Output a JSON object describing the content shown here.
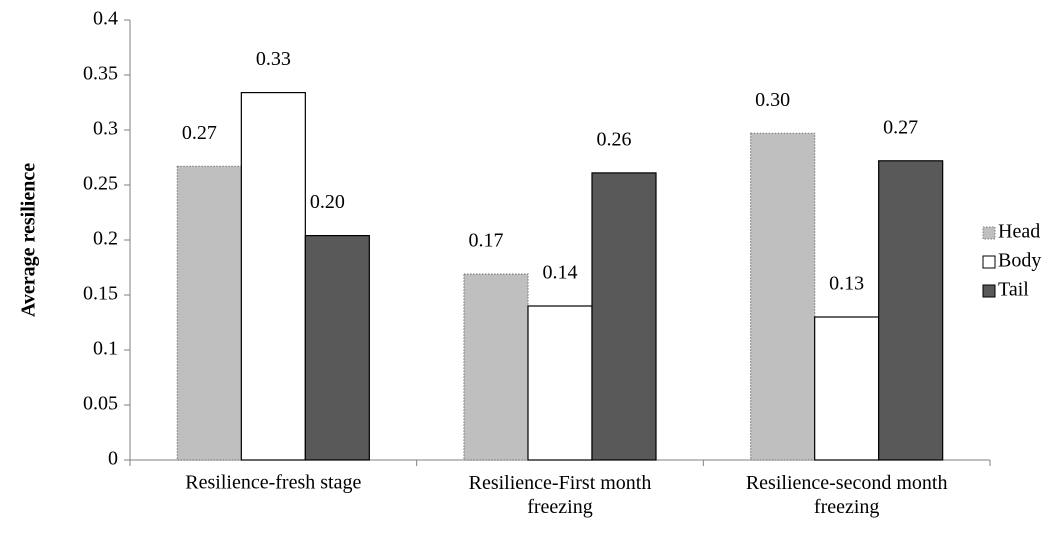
{
  "chart_data": {
    "type": "bar",
    "y_label": "Average resilience",
    "categories": [
      "Resilience-fresh stage",
      "Resilience-First month freezing",
      "Resilience-second month freezing"
    ],
    "series": [
      {
        "name": "Head",
        "color": "#bfbfbf",
        "values": [
          0.267,
          0.169,
          0.297
        ],
        "value_labels": [
          "0.27",
          "0.17",
          "0.30"
        ]
      },
      {
        "name": "Body",
        "color": "#ffffff",
        "values": [
          0.334,
          0.14,
          0.13
        ],
        "value_labels": [
          "0.33",
          "0.14",
          "0.13"
        ]
      },
      {
        "name": "Tail",
        "color": "#595959",
        "values": [
          0.204,
          0.261,
          0.272
        ],
        "value_labels": [
          "0.20",
          "0.26",
          "0.27"
        ]
      }
    ],
    "ylim": [
      0,
      0.4
    ],
    "yticks": [
      0,
      0.05,
      0.1,
      0.15,
      0.2,
      0.25,
      0.3,
      0.35,
      0.4
    ],
    "grid": false,
    "legend": "right"
  }
}
